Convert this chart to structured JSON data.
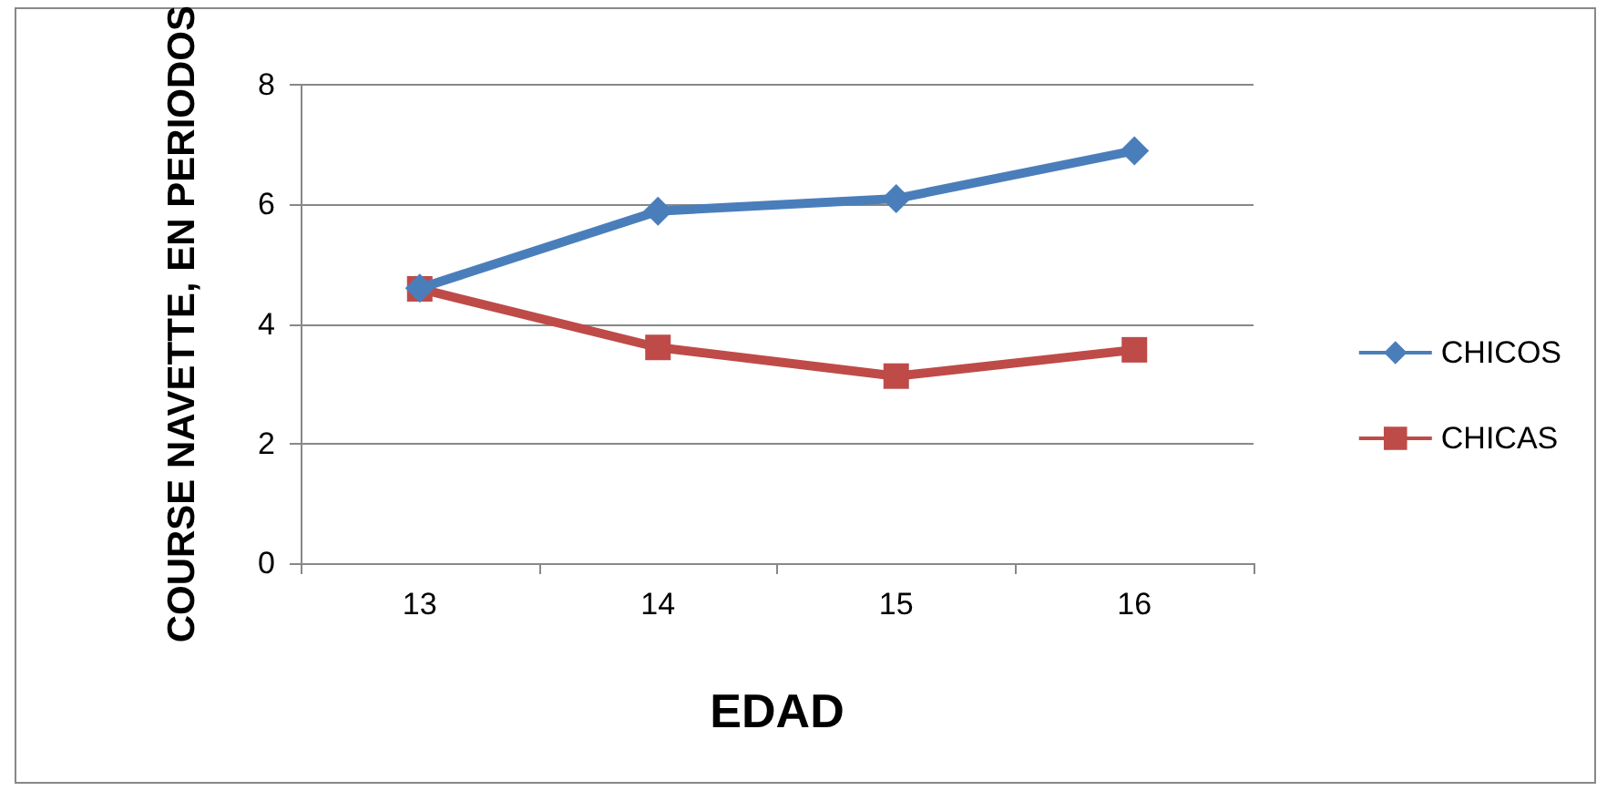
{
  "chart_data": {
    "type": "line",
    "xlabel": "EDAD",
    "ylabel": "COURSE NAVETTE, EN PERIODOS",
    "categories": [
      "13",
      "14",
      "15",
      "16"
    ],
    "series": [
      {
        "name": "CHICOS",
        "color": "#4a7ebb",
        "marker": "diamond",
        "values": [
          4.6,
          5.89,
          6.1,
          6.9
        ]
      },
      {
        "name": "CHICAS",
        "color": "#be4b48",
        "marker": "square",
        "values": [
          4.59,
          3.61,
          3.13,
          3.57
        ]
      }
    ],
    "ylim": [
      0,
      8
    ],
    "yticks": [
      0,
      2,
      4,
      6,
      8
    ],
    "grid": "y",
    "legend": "right",
    "line_style": "solid"
  }
}
